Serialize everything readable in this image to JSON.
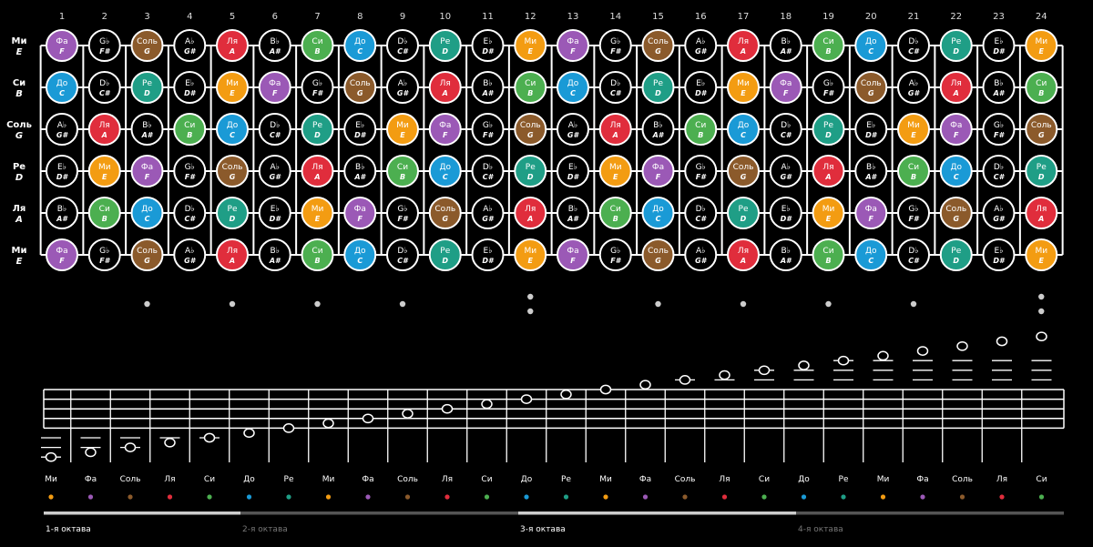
{
  "frets": [
    "1",
    "2",
    "3",
    "4",
    "5",
    "6",
    "7",
    "8",
    "9",
    "10",
    "11",
    "12",
    "13",
    "14",
    "15",
    "16",
    "17",
    "18",
    "19",
    "20",
    "21",
    "22",
    "23",
    "24"
  ],
  "colors": {
    "fa": "#9b59b6",
    "sol": "#8b5a2b",
    "la": "#e02d3c",
    "si": "#4caf50",
    "do": "#1a9ad6",
    "re": "#1f9e86",
    "mi": "#f39c12",
    "sharp": "#000000"
  },
  "strings": [
    {
      "ru": "Ми",
      "en": "E",
      "cells": [
        {
          "n": "Фа",
          "l": "F",
          "c": "fa"
        },
        {
          "n": "G♭",
          "l": "F#",
          "c": "sharp"
        },
        {
          "n": "Соль",
          "l": "G",
          "c": "sol"
        },
        {
          "n": "A♭",
          "l": "G#",
          "c": "sharp"
        },
        {
          "n": "Ля",
          "l": "A",
          "c": "la"
        },
        {
          "n": "B♭",
          "l": "A#",
          "c": "sharp"
        },
        {
          "n": "Си",
          "l": "B",
          "c": "si"
        },
        {
          "n": "До",
          "l": "C",
          "c": "do"
        },
        {
          "n": "D♭",
          "l": "C#",
          "c": "sharp"
        },
        {
          "n": "Ре",
          "l": "D",
          "c": "re"
        },
        {
          "n": "E♭",
          "l": "D#",
          "c": "sharp"
        },
        {
          "n": "Ми",
          "l": "E",
          "c": "mi"
        },
        {
          "n": "Фа",
          "l": "F",
          "c": "fa"
        },
        {
          "n": "G♭",
          "l": "F#",
          "c": "sharp"
        },
        {
          "n": "Соль",
          "l": "G",
          "c": "sol"
        },
        {
          "n": "A♭",
          "l": "G#",
          "c": "sharp"
        },
        {
          "n": "Ля",
          "l": "A",
          "c": "la"
        },
        {
          "n": "B♭",
          "l": "A#",
          "c": "sharp"
        },
        {
          "n": "Си",
          "l": "B",
          "c": "si"
        },
        {
          "n": "До",
          "l": "C",
          "c": "do"
        },
        {
          "n": "D♭",
          "l": "C#",
          "c": "sharp"
        },
        {
          "n": "Ре",
          "l": "D",
          "c": "re"
        },
        {
          "n": "E♭",
          "l": "D#",
          "c": "sharp"
        },
        {
          "n": "Ми",
          "l": "E",
          "c": "mi"
        }
      ]
    },
    {
      "ru": "Си",
      "en": "B",
      "cells": [
        {
          "n": "До",
          "l": "C",
          "c": "do"
        },
        {
          "n": "D♭",
          "l": "C#",
          "c": "sharp"
        },
        {
          "n": "Ре",
          "l": "D",
          "c": "re"
        },
        {
          "n": "E♭",
          "l": "D#",
          "c": "sharp"
        },
        {
          "n": "Ми",
          "l": "E",
          "c": "mi"
        },
        {
          "n": "Фа",
          "l": "F",
          "c": "fa"
        },
        {
          "n": "G♭",
          "l": "F#",
          "c": "sharp"
        },
        {
          "n": "Соль",
          "l": "G",
          "c": "sol"
        },
        {
          "n": "A♭",
          "l": "G#",
          "c": "sharp"
        },
        {
          "n": "Ля",
          "l": "A",
          "c": "la"
        },
        {
          "n": "B♭",
          "l": "A#",
          "c": "sharp"
        },
        {
          "n": "Си",
          "l": "B",
          "c": "si"
        },
        {
          "n": "До",
          "l": "C",
          "c": "do"
        },
        {
          "n": "D♭",
          "l": "C#",
          "c": "sharp"
        },
        {
          "n": "Ре",
          "l": "D",
          "c": "re"
        },
        {
          "n": "E♭",
          "l": "D#",
          "c": "sharp"
        },
        {
          "n": "Ми",
          "l": "E",
          "c": "mi"
        },
        {
          "n": "Фа",
          "l": "F",
          "c": "fa"
        },
        {
          "n": "G♭",
          "l": "F#",
          "c": "sharp"
        },
        {
          "n": "Соль",
          "l": "G",
          "c": "sol"
        },
        {
          "n": "A♭",
          "l": "G#",
          "c": "sharp"
        },
        {
          "n": "Ля",
          "l": "A",
          "c": "la"
        },
        {
          "n": "B♭",
          "l": "A#",
          "c": "sharp"
        },
        {
          "n": "Си",
          "l": "B",
          "c": "si"
        }
      ]
    },
    {
      "ru": "Соль",
      "en": "G",
      "cells": [
        {
          "n": "A♭",
          "l": "G#",
          "c": "sharp"
        },
        {
          "n": "Ля",
          "l": "A",
          "c": "la"
        },
        {
          "n": "B♭",
          "l": "A#",
          "c": "sharp"
        },
        {
          "n": "Си",
          "l": "B",
          "c": "si"
        },
        {
          "n": "До",
          "l": "C",
          "c": "do"
        },
        {
          "n": "D♭",
          "l": "C#",
          "c": "sharp"
        },
        {
          "n": "Ре",
          "l": "D",
          "c": "re"
        },
        {
          "n": "E♭",
          "l": "D#",
          "c": "sharp"
        },
        {
          "n": "Ми",
          "l": "E",
          "c": "mi"
        },
        {
          "n": "Фа",
          "l": "F",
          "c": "fa"
        },
        {
          "n": "G♭",
          "l": "F#",
          "c": "sharp"
        },
        {
          "n": "Соль",
          "l": "G",
          "c": "sol"
        },
        {
          "n": "A♭",
          "l": "G#",
          "c": "sharp"
        },
        {
          "n": "Ля",
          "l": "A",
          "c": "la"
        },
        {
          "n": "B♭",
          "l": "A#",
          "c": "sharp"
        },
        {
          "n": "Си",
          "l": "B",
          "c": "si"
        },
        {
          "n": "До",
          "l": "C",
          "c": "do"
        },
        {
          "n": "D♭",
          "l": "C#",
          "c": "sharp"
        },
        {
          "n": "Ре",
          "l": "D",
          "c": "re"
        },
        {
          "n": "E♭",
          "l": "D#",
          "c": "sharp"
        },
        {
          "n": "Ми",
          "l": "E",
          "c": "mi"
        },
        {
          "n": "Фа",
          "l": "F",
          "c": "fa"
        },
        {
          "n": "G♭",
          "l": "F#",
          "c": "sharp"
        },
        {
          "n": "Соль",
          "l": "G",
          "c": "sol"
        }
      ]
    },
    {
      "ru": "Ре",
      "en": "D",
      "cells": [
        {
          "n": "E♭",
          "l": "D#",
          "c": "sharp"
        },
        {
          "n": "Ми",
          "l": "E",
          "c": "mi"
        },
        {
          "n": "Фа",
          "l": "F",
          "c": "fa"
        },
        {
          "n": "G♭",
          "l": "F#",
          "c": "sharp"
        },
        {
          "n": "Соль",
          "l": "G",
          "c": "sol"
        },
        {
          "n": "A♭",
          "l": "G#",
          "c": "sharp"
        },
        {
          "n": "Ля",
          "l": "A",
          "c": "la"
        },
        {
          "n": "B♭",
          "l": "A#",
          "c": "sharp"
        },
        {
          "n": "Си",
          "l": "B",
          "c": "si"
        },
        {
          "n": "До",
          "l": "C",
          "c": "do"
        },
        {
          "n": "D♭",
          "l": "C#",
          "c": "sharp"
        },
        {
          "n": "Ре",
          "l": "D",
          "c": "re"
        },
        {
          "n": "E♭",
          "l": "D#",
          "c": "sharp"
        },
        {
          "n": "Ми",
          "l": "E",
          "c": "mi"
        },
        {
          "n": "Фа",
          "l": "F",
          "c": "fa"
        },
        {
          "n": "G♭",
          "l": "F#",
          "c": "sharp"
        },
        {
          "n": "Соль",
          "l": "G",
          "c": "sol"
        },
        {
          "n": "A♭",
          "l": "G#",
          "c": "sharp"
        },
        {
          "n": "Ля",
          "l": "A",
          "c": "la"
        },
        {
          "n": "B♭",
          "l": "A#",
          "c": "sharp"
        },
        {
          "n": "Си",
          "l": "B",
          "c": "si"
        },
        {
          "n": "До",
          "l": "C",
          "c": "do"
        },
        {
          "n": "D♭",
          "l": "C#",
          "c": "sharp"
        },
        {
          "n": "Ре",
          "l": "D",
          "c": "re"
        }
      ]
    },
    {
      "ru": "Ля",
      "en": "A",
      "cells": [
        {
          "n": "B♭",
          "l": "A#",
          "c": "sharp"
        },
        {
          "n": "Си",
          "l": "B",
          "c": "si"
        },
        {
          "n": "До",
          "l": "C",
          "c": "do"
        },
        {
          "n": "D♭",
          "l": "C#",
          "c": "sharp"
        },
        {
          "n": "Ре",
          "l": "D",
          "c": "re"
        },
        {
          "n": "E♭",
          "l": "D#",
          "c": "sharp"
        },
        {
          "n": "Ми",
          "l": "E",
          "c": "mi"
        },
        {
          "n": "Фа",
          "l": "F",
          "c": "fa"
        },
        {
          "n": "G♭",
          "l": "F#",
          "c": "sharp"
        },
        {
          "n": "Соль",
          "l": "G",
          "c": "sol"
        },
        {
          "n": "A♭",
          "l": "G#",
          "c": "sharp"
        },
        {
          "n": "Ля",
          "l": "A",
          "c": "la"
        },
        {
          "n": "B♭",
          "l": "A#",
          "c": "sharp"
        },
        {
          "n": "Си",
          "l": "B",
          "c": "si"
        },
        {
          "n": "До",
          "l": "C",
          "c": "do"
        },
        {
          "n": "D♭",
          "l": "C#",
          "c": "sharp"
        },
        {
          "n": "Ре",
          "l": "D",
          "c": "re"
        },
        {
          "n": "E♭",
          "l": "D#",
          "c": "sharp"
        },
        {
          "n": "Ми",
          "l": "E",
          "c": "mi"
        },
        {
          "n": "Фа",
          "l": "F",
          "c": "fa"
        },
        {
          "n": "G♭",
          "l": "F#",
          "c": "sharp"
        },
        {
          "n": "Соль",
          "l": "G",
          "c": "sol"
        },
        {
          "n": "A♭",
          "l": "G#",
          "c": "sharp"
        },
        {
          "n": "Ля",
          "l": "A",
          "c": "la"
        }
      ]
    },
    {
      "ru": "Ми",
      "en": "E",
      "cells": [
        {
          "n": "Фа",
          "l": "F",
          "c": "fa"
        },
        {
          "n": "G♭",
          "l": "F#",
          "c": "sharp"
        },
        {
          "n": "Соль",
          "l": "G",
          "c": "sol"
        },
        {
          "n": "A♭",
          "l": "G#",
          "c": "sharp"
        },
        {
          "n": "Ля",
          "l": "A",
          "c": "la"
        },
        {
          "n": "B♭",
          "l": "A#",
          "c": "sharp"
        },
        {
          "n": "Си",
          "l": "B",
          "c": "si"
        },
        {
          "n": "До",
          "l": "C",
          "c": "do"
        },
        {
          "n": "D♭",
          "l": "C#",
          "c": "sharp"
        },
        {
          "n": "Ре",
          "l": "D",
          "c": "re"
        },
        {
          "n": "E♭",
          "l": "D#",
          "c": "sharp"
        },
        {
          "n": "Ми",
          "l": "E",
          "c": "mi"
        },
        {
          "n": "Фа",
          "l": "F",
          "c": "fa"
        },
        {
          "n": "G♭",
          "l": "F#",
          "c": "sharp"
        },
        {
          "n": "Соль",
          "l": "G",
          "c": "sol"
        },
        {
          "n": "A♭",
          "l": "G#",
          "c": "sharp"
        },
        {
          "n": "Ля",
          "l": "A",
          "c": "la"
        },
        {
          "n": "B♭",
          "l": "A#",
          "c": "sharp"
        },
        {
          "n": "Си",
          "l": "B",
          "c": "si"
        },
        {
          "n": "До",
          "l": "C",
          "c": "do"
        },
        {
          "n": "D♭",
          "l": "C#",
          "c": "sharp"
        },
        {
          "n": "Ре",
          "l": "D",
          "c": "re"
        },
        {
          "n": "E♭",
          "l": "D#",
          "c": "sharp"
        },
        {
          "n": "Ми",
          "l": "E",
          "c": "mi"
        }
      ]
    }
  ],
  "markers": {
    "single": [
      3,
      5,
      7,
      9,
      15,
      17,
      19,
      21
    ],
    "double": [
      12,
      24
    ]
  },
  "scale": [
    {
      "n": "Ми",
      "c": "mi"
    },
    {
      "n": "Фа",
      "c": "fa"
    },
    {
      "n": "Соль",
      "c": "sol"
    },
    {
      "n": "Ля",
      "c": "la"
    },
    {
      "n": "Си",
      "c": "si"
    },
    {
      "n": "До",
      "c": "do"
    },
    {
      "n": "Ре",
      "c": "re"
    },
    {
      "n": "Ми",
      "c": "mi"
    },
    {
      "n": "Фа",
      "c": "fa"
    },
    {
      "n": "Соль",
      "c": "sol"
    },
    {
      "n": "Ля",
      "c": "la"
    },
    {
      "n": "Си",
      "c": "si"
    },
    {
      "n": "До",
      "c": "do"
    },
    {
      "n": "Ре",
      "c": "re"
    },
    {
      "n": "Ми",
      "c": "mi"
    },
    {
      "n": "Фа",
      "c": "fa"
    },
    {
      "n": "Соль",
      "c": "sol"
    },
    {
      "n": "Ля",
      "c": "la"
    },
    {
      "n": "Си",
      "c": "si"
    },
    {
      "n": "До",
      "c": "do"
    },
    {
      "n": "Ре",
      "c": "re"
    },
    {
      "n": "Ми",
      "c": "mi"
    },
    {
      "n": "Фа",
      "c": "fa"
    },
    {
      "n": "Соль",
      "c": "sol"
    },
    {
      "n": "Ля",
      "c": "la"
    },
    {
      "n": "Си",
      "c": "si"
    }
  ],
  "octaves": [
    {
      "label": "1-я октава",
      "color": "#ffffff",
      "bar": "#cccccc"
    },
    {
      "label": "2-я октава",
      "color": "#777777",
      "bar": "#555555"
    },
    {
      "label": "3-я октава",
      "color": "#ffffff",
      "bar": "#cccccc"
    },
    {
      "label": "4-я октава",
      "color": "#777777",
      "bar": "#555555"
    }
  ]
}
